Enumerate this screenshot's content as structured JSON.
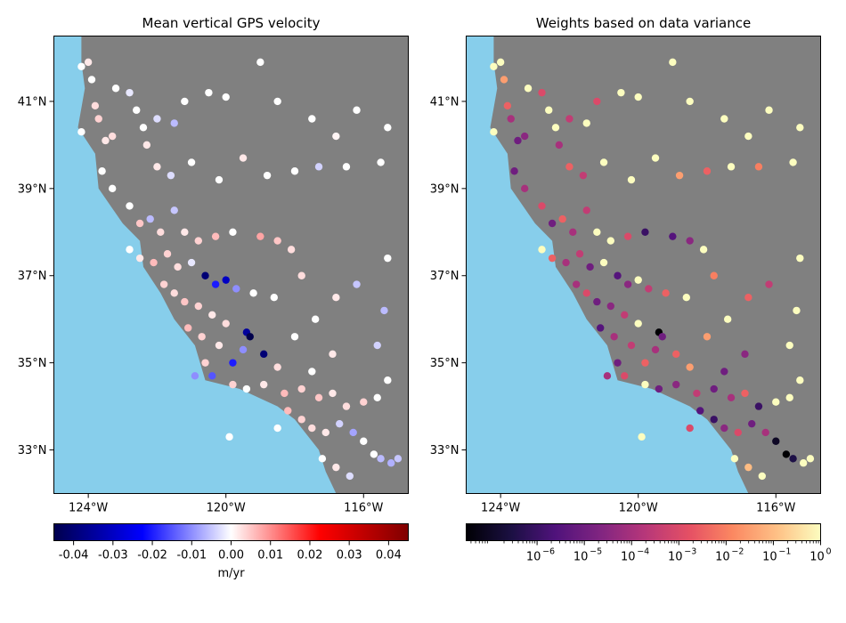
{
  "chart_data": [
    {
      "type": "scatter",
      "title": "Mean vertical GPS velocity",
      "xlim": [
        -125,
        -114.7
      ],
      "ylim": [
        32,
        42.5
      ],
      "x_ticks": [
        {
          "value": -124,
          "label": "124°W"
        },
        {
          "value": -120,
          "label": "120°W"
        },
        {
          "value": -116,
          "label": "116°W"
        }
      ],
      "y_ticks": [
        {
          "value": 33,
          "label": "33°N"
        },
        {
          "value": 35,
          "label": "35°N"
        },
        {
          "value": 37,
          "label": "37°N"
        },
        {
          "value": 39,
          "label": "39°N"
        },
        {
          "value": 41,
          "label": "41°N"
        }
      ],
      "colors": {
        "ocean": "#87ceeb",
        "land": "#808080"
      },
      "colormap": "seismic",
      "colorbar": {
        "range": [
          -0.045,
          0.045
        ],
        "scale": "linear",
        "ticks": [
          "-0.04",
          "-0.03",
          "-0.02",
          "-0.01",
          "0.00",
          "0.01",
          "0.02",
          "0.03",
          "0.04"
        ],
        "label": "m/yr"
      },
      "points": [
        [
          -124.2,
          41.8,
          0
        ],
        [
          -124.0,
          41.9,
          0.002
        ],
        [
          -123.9,
          41.5,
          0
        ],
        [
          -123.8,
          40.9,
          0.003
        ],
        [
          -123.7,
          40.6,
          0.004
        ],
        [
          -124.2,
          40.3,
          0
        ],
        [
          -123.5,
          40.1,
          0.002
        ],
        [
          -123.3,
          40.2,
          0.003
        ],
        [
          -123.2,
          41.3,
          0
        ],
        [
          -122.8,
          41.2,
          -0.002
        ],
        [
          -122.6,
          40.8,
          0
        ],
        [
          -122.4,
          40.4,
          0
        ],
        [
          -122.3,
          40.0,
          0.002
        ],
        [
          -122.0,
          40.6,
          -0.003
        ],
        [
          -121.5,
          40.5,
          -0.006
        ],
        [
          -121.2,
          41.0,
          0
        ],
        [
          -120.5,
          41.2,
          0
        ],
        [
          -120.0,
          41.1,
          0
        ],
        [
          -119.0,
          41.9,
          0
        ],
        [
          -118.5,
          41.0,
          0
        ],
        [
          -117.5,
          40.6,
          0
        ],
        [
          -116.8,
          40.2,
          0.001
        ],
        [
          -116.2,
          40.8,
          0
        ],
        [
          -115.3,
          40.4,
          0
        ],
        [
          -122.0,
          39.5,
          0.002
        ],
        [
          -121.6,
          39.3,
          -0.003
        ],
        [
          -121.0,
          39.6,
          0
        ],
        [
          -120.2,
          39.2,
          0
        ],
        [
          -119.5,
          39.7,
          0.002
        ],
        [
          -118.8,
          39.3,
          0
        ],
        [
          -118.0,
          39.4,
          0
        ],
        [
          -117.3,
          39.5,
          -0.004
        ],
        [
          -116.5,
          39.5,
          0
        ],
        [
          -115.5,
          39.6,
          0
        ],
        [
          -123.6,
          39.4,
          0
        ],
        [
          -123.3,
          39.0,
          0
        ],
        [
          -122.8,
          38.6,
          0
        ],
        [
          -122.5,
          38.2,
          0.005
        ],
        [
          -122.2,
          38.3,
          -0.006
        ],
        [
          -121.9,
          38.0,
          0.003
        ],
        [
          -121.5,
          38.5,
          -0.005
        ],
        [
          -121.2,
          38.0,
          0.002
        ],
        [
          -120.8,
          37.8,
          0.004
        ],
        [
          -120.3,
          37.9,
          0.006
        ],
        [
          -119.8,
          38.0,
          0
        ],
        [
          -119.0,
          37.9,
          0.008
        ],
        [
          -118.5,
          37.8,
          0.005
        ],
        [
          -118.1,
          37.6,
          0.003
        ],
        [
          -122.8,
          37.6,
          0
        ],
        [
          -122.5,
          37.4,
          0.002
        ],
        [
          -122.1,
          37.3,
          0.006
        ],
        [
          -121.7,
          37.5,
          0.004
        ],
        [
          -121.4,
          37.2,
          0.003
        ],
        [
          -121.0,
          37.3,
          -0.002
        ],
        [
          -120.6,
          37.0,
          -0.04
        ],
        [
          -120.3,
          36.8,
          -0.02
        ],
        [
          -120.0,
          36.9,
          -0.03
        ],
        [
          -119.7,
          36.7,
          -0.01
        ],
        [
          -119.2,
          36.6,
          0
        ],
        [
          -118.6,
          36.5,
          0
        ],
        [
          -121.8,
          36.8,
          0.004
        ],
        [
          -121.5,
          36.6,
          0.003
        ],
        [
          -121.2,
          36.4,
          0.005
        ],
        [
          -120.8,
          36.3,
          0.004
        ],
        [
          -120.4,
          36.1,
          0.002
        ],
        [
          -120.0,
          35.9,
          0.003
        ],
        [
          -119.4,
          35.7,
          -0.035
        ],
        [
          -119.3,
          35.6,
          -0.045
        ],
        [
          -118.9,
          35.2,
          -0.04
        ],
        [
          -119.5,
          35.3,
          -0.01
        ],
        [
          -121.1,
          35.8,
          0.006
        ],
        [
          -120.7,
          35.6,
          0.004
        ],
        [
          -120.2,
          35.4,
          0.002
        ],
        [
          -119.8,
          35.0,
          -0.02
        ],
        [
          -120.6,
          35.0,
          0.004
        ],
        [
          -120.9,
          34.7,
          -0.01
        ],
        [
          -120.4,
          34.7,
          -0.015
        ],
        [
          -119.8,
          34.5,
          0.004
        ],
        [
          -119.4,
          34.4,
          0
        ],
        [
          -118.9,
          34.5,
          0.002
        ],
        [
          -118.3,
          34.3,
          0.006
        ],
        [
          -117.8,
          34.4,
          0.004
        ],
        [
          -117.3,
          34.2,
          0.005
        ],
        [
          -116.9,
          34.3,
          0.002
        ],
        [
          -116.5,
          34.0,
          0.003
        ],
        [
          -116.0,
          34.1,
          0.004
        ],
        [
          -115.6,
          34.2,
          0
        ],
        [
          -118.2,
          33.9,
          0.006
        ],
        [
          -117.8,
          33.7,
          0.004
        ],
        [
          -117.5,
          33.5,
          0.003
        ],
        [
          -117.1,
          33.4,
          0.002
        ],
        [
          -116.7,
          33.6,
          -0.004
        ],
        [
          -116.3,
          33.4,
          -0.008
        ],
        [
          -116.0,
          33.2,
          0
        ],
        [
          -115.7,
          32.9,
          0
        ],
        [
          -115.5,
          32.8,
          -0.006
        ],
        [
          -117.2,
          32.8,
          0
        ],
        [
          -116.8,
          32.6,
          0.002
        ],
        [
          -116.4,
          32.4,
          -0.003
        ],
        [
          -115.2,
          32.7,
          -0.007
        ],
        [
          -115.0,
          32.8,
          -0.005
        ],
        [
          -119.9,
          33.3,
          0
        ],
        [
          -118.5,
          33.5,
          0
        ],
        [
          -117.4,
          36.0,
          0
        ],
        [
          -116.8,
          36.5,
          0.002
        ],
        [
          -116.2,
          36.8,
          -0.005
        ],
        [
          -115.3,
          37.4,
          0
        ],
        [
          -115.4,
          36.2,
          -0.006
        ],
        [
          -117.8,
          37.0,
          0.003
        ],
        [
          -118.0,
          35.6,
          0
        ],
        [
          -115.6,
          35.4,
          -0.004
        ],
        [
          -116.9,
          35.2,
          0.002
        ],
        [
          -117.5,
          34.8,
          0
        ],
        [
          -118.5,
          34.9,
          0.003
        ],
        [
          -115.3,
          34.6,
          0
        ]
      ]
    },
    {
      "type": "scatter",
      "title": "Weights based on data variance",
      "xlim": [
        -125,
        -114.7
      ],
      "ylim": [
        32,
        42.5
      ],
      "x_ticks": [
        {
          "value": -124,
          "label": "124°W"
        },
        {
          "value": -120,
          "label": "120°W"
        },
        {
          "value": -116,
          "label": "116°W"
        }
      ],
      "y_ticks": [
        {
          "value": 33,
          "label": "33°N"
        },
        {
          "value": 35,
          "label": "35°N"
        },
        {
          "value": 37,
          "label": "37°N"
        },
        {
          "value": 39,
          "label": "39°N"
        },
        {
          "value": 41,
          "label": "41°N"
        }
      ],
      "colors": {
        "ocean": "#87ceeb",
        "land": "#808080"
      },
      "colormap": "magma",
      "colorbar": {
        "range": [
          -7.5,
          0
        ],
        "scale": "log10",
        "ticks": [
          "10",
          "10",
          "10",
          "10",
          "10",
          "10",
          "10"
        ],
        "tick_exponents": [
          "−6",
          "−5",
          "−4",
          "−3",
          "−2",
          "−1",
          "0"
        ],
        "label": ""
      },
      "points": [
        [
          -124.2,
          41.8,
          0
        ],
        [
          -124.0,
          41.9,
          0
        ],
        [
          -123.9,
          41.5,
          -1.5
        ],
        [
          -123.8,
          40.9,
          -2.5
        ],
        [
          -123.7,
          40.6,
          -4
        ],
        [
          -124.2,
          40.3,
          0
        ],
        [
          -123.5,
          40.1,
          -5
        ],
        [
          -123.3,
          40.2,
          -4.5
        ],
        [
          -123.2,
          41.3,
          0
        ],
        [
          -122.8,
          41.2,
          -3
        ],
        [
          -122.6,
          40.8,
          0
        ],
        [
          -122.4,
          40.4,
          0
        ],
        [
          -122.3,
          40.0,
          -4
        ],
        [
          -122.0,
          40.6,
          -3.5
        ],
        [
          -121.5,
          40.5,
          0
        ],
        [
          -121.2,
          41.0,
          -3
        ],
        [
          -120.5,
          41.2,
          0
        ],
        [
          -120.0,
          41.1,
          0
        ],
        [
          -119.0,
          41.9,
          0
        ],
        [
          -118.5,
          41.0,
          0
        ],
        [
          -117.5,
          40.6,
          0
        ],
        [
          -116.8,
          40.2,
          0
        ],
        [
          -116.2,
          40.8,
          0
        ],
        [
          -115.3,
          40.4,
          0
        ],
        [
          -122.0,
          39.5,
          -2.5
        ],
        [
          -121.6,
          39.3,
          -3.5
        ],
        [
          -121.0,
          39.6,
          0
        ],
        [
          -120.2,
          39.2,
          0
        ],
        [
          -119.5,
          39.7,
          0
        ],
        [
          -118.8,
          39.3,
          -1.5
        ],
        [
          -118.0,
          39.4,
          -2.5
        ],
        [
          -117.3,
          39.5,
          0
        ],
        [
          -116.5,
          39.5,
          -2
        ],
        [
          -115.5,
          39.6,
          0
        ],
        [
          -123.6,
          39.4,
          -5
        ],
        [
          -123.3,
          39.0,
          -4
        ],
        [
          -122.8,
          38.6,
          -3
        ],
        [
          -122.5,
          38.2,
          -5
        ],
        [
          -122.2,
          38.3,
          -2.5
        ],
        [
          -121.9,
          38.0,
          -4
        ],
        [
          -121.5,
          38.5,
          -3.5
        ],
        [
          -121.2,
          38.0,
          0
        ],
        [
          -120.8,
          37.8,
          0
        ],
        [
          -120.3,
          37.9,
          -3
        ],
        [
          -119.8,
          38.0,
          -6
        ],
        [
          -119.0,
          37.9,
          -5.5
        ],
        [
          -118.5,
          37.8,
          -4.5
        ],
        [
          -118.1,
          37.6,
          0
        ],
        [
          -122.8,
          37.6,
          0
        ],
        [
          -122.5,
          37.4,
          -2.5
        ],
        [
          -122.1,
          37.3,
          -4
        ],
        [
          -121.7,
          37.5,
          -3.5
        ],
        [
          -121.4,
          37.2,
          -5
        ],
        [
          -121.0,
          37.3,
          0
        ],
        [
          -120.6,
          37.0,
          -5.5
        ],
        [
          -120.3,
          36.8,
          -4.5
        ],
        [
          -120.0,
          36.9,
          0
        ],
        [
          -119.7,
          36.7,
          -3.5
        ],
        [
          -119.2,
          36.6,
          -2.5
        ],
        [
          -118.6,
          36.5,
          0
        ],
        [
          -121.8,
          36.8,
          -4
        ],
        [
          -121.5,
          36.6,
          -3
        ],
        [
          -121.2,
          36.4,
          -5
        ],
        [
          -120.8,
          36.3,
          -4.5
        ],
        [
          -120.4,
          36.1,
          -3.5
        ],
        [
          -120.0,
          35.9,
          0
        ],
        [
          -119.4,
          35.7,
          -7.5
        ],
        [
          -119.3,
          35.6,
          -5
        ],
        [
          -118.9,
          35.2,
          -2.5
        ],
        [
          -119.5,
          35.3,
          -4
        ],
        [
          -121.1,
          35.8,
          -5.5
        ],
        [
          -120.7,
          35.6,
          -4
        ],
        [
          -120.2,
          35.4,
          -3.5
        ],
        [
          -119.8,
          35.0,
          -2.5
        ],
        [
          -120.6,
          35.0,
          -5
        ],
        [
          -120.9,
          34.7,
          -4
        ],
        [
          -120.4,
          34.7,
          -3
        ],
        [
          -119.8,
          34.5,
          0
        ],
        [
          -119.4,
          34.4,
          -5
        ],
        [
          -118.9,
          34.5,
          -4.5
        ],
        [
          -118.3,
          34.3,
          -3.5
        ],
        [
          -117.8,
          34.4,
          -5
        ],
        [
          -117.3,
          34.2,
          -4
        ],
        [
          -116.9,
          34.3,
          -2.5
        ],
        [
          -116.5,
          34.0,
          -6
        ],
        [
          -116.0,
          34.1,
          0
        ],
        [
          -115.6,
          34.2,
          0
        ],
        [
          -118.2,
          33.9,
          -5.5
        ],
        [
          -117.8,
          33.7,
          -6
        ],
        [
          -117.5,
          33.5,
          -4.5
        ],
        [
          -117.1,
          33.4,
          -3
        ],
        [
          -116.7,
          33.6,
          -5
        ],
        [
          -116.3,
          33.4,
          -4
        ],
        [
          -116.0,
          33.2,
          -7
        ],
        [
          -115.7,
          32.9,
          -7.5
        ],
        [
          -115.5,
          32.8,
          -6.5
        ],
        [
          -117.2,
          32.8,
          0
        ],
        [
          -116.8,
          32.6,
          -1
        ],
        [
          -116.4,
          32.4,
          0
        ],
        [
          -115.2,
          32.7,
          0
        ],
        [
          -115.0,
          32.8,
          0
        ],
        [
          -119.9,
          33.3,
          0
        ],
        [
          -118.5,
          33.5,
          -3
        ],
        [
          -117.4,
          36.0,
          0
        ],
        [
          -116.8,
          36.5,
          -2.5
        ],
        [
          -116.2,
          36.8,
          -3.5
        ],
        [
          -115.3,
          37.4,
          0
        ],
        [
          -115.4,
          36.2,
          0
        ],
        [
          -117.8,
          37.0,
          -2
        ],
        [
          -118.0,
          35.6,
          -1.5
        ],
        [
          -115.6,
          35.4,
          0
        ],
        [
          -116.9,
          35.2,
          -4.5
        ],
        [
          -117.5,
          34.8,
          -5
        ],
        [
          -118.5,
          34.9,
          -1.5
        ],
        [
          -115.3,
          34.6,
          0
        ]
      ]
    }
  ]
}
